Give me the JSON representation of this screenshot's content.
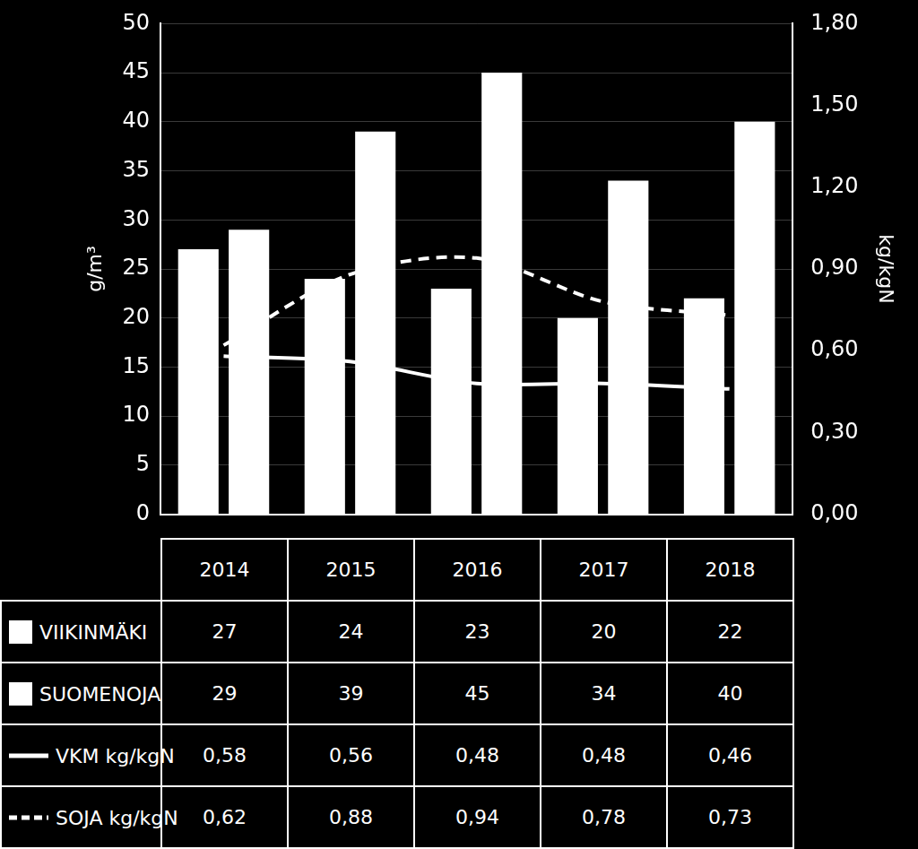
{
  "chart_data": {
    "type": "bar",
    "categories": [
      "2014",
      "2015",
      "2016",
      "2017",
      "2018"
    ],
    "series": [
      {
        "name": "VIIKINMÄKI",
        "type": "bar",
        "color": "#ffffff",
        "values": [
          27,
          24,
          23,
          20,
          22
        ]
      },
      {
        "name": "SUOMENOJA",
        "type": "bar",
        "color": "#ffffff",
        "values": [
          29,
          39,
          45,
          34,
          40
        ]
      },
      {
        "name": "VKM kg/kgN",
        "type": "line",
        "color": "#ffffff",
        "line_style": "solid",
        "marker": "none",
        "axis": "y2",
        "values": [
          0.58,
          0.56,
          0.48,
          0.48,
          0.46
        ],
        "value_labels": [
          "0,58",
          "0,56",
          "0,48",
          "0,48",
          "0,46"
        ]
      },
      {
        "name": "SOJA kg/kgN",
        "type": "line",
        "color": "#ffffff",
        "line_style": "dashed",
        "marker": "none",
        "axis": "y2",
        "values": [
          0.62,
          0.88,
          0.94,
          0.78,
          0.73
        ],
        "value_labels": [
          "0,62",
          "0,88",
          "0,94",
          "0,78",
          "0,73"
        ]
      }
    ],
    "ylabel": "g/m³",
    "y2label": "kg/kgN",
    "ylim": [
      0,
      50
    ],
    "yticks": [
      0,
      5,
      10,
      15,
      20,
      25,
      30,
      35,
      40,
      45,
      50
    ],
    "y2lim": [
      0,
      1.8
    ],
    "y2ticks": [
      {
        "value": 0,
        "label": "0,00"
      },
      {
        "value": 0.3,
        "label": "0,30"
      },
      {
        "value": 0.6,
        "label": "0,60"
      },
      {
        "value": 0.9,
        "label": "0,90"
      },
      {
        "value": 1.2,
        "label": "1,20"
      },
      {
        "value": 1.5,
        "label": "1,50"
      },
      {
        "value": 1.8,
        "label": "1,80"
      }
    ],
    "grid": true,
    "legend": "bottom"
  }
}
